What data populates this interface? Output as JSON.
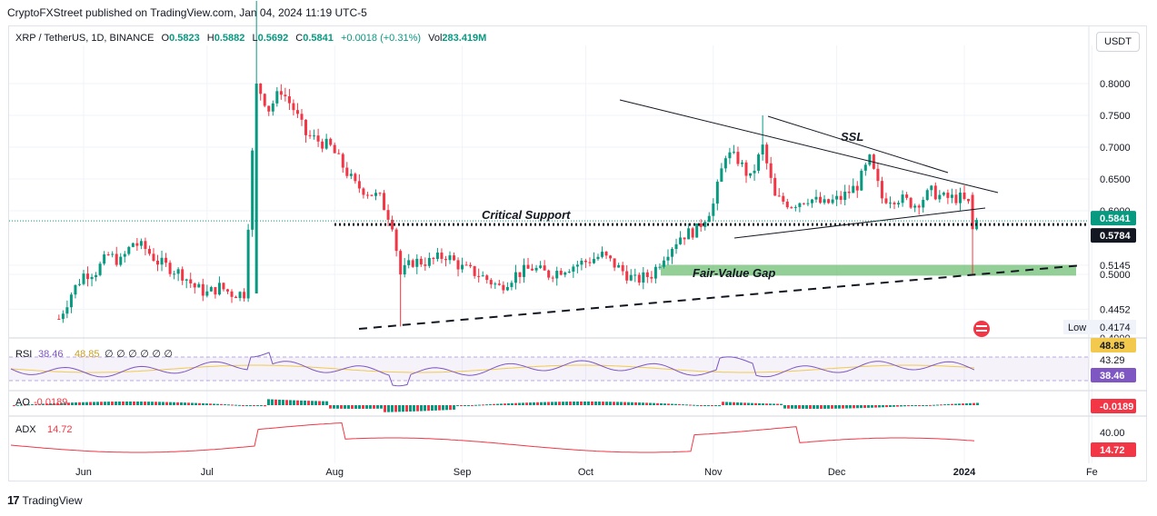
{
  "publisher": "CryptoFXStreet published on TradingView.com, Jan 04, 2024 11:19 UTC-5",
  "currency_button": "USDT",
  "footer_brand": "TradingView",
  "colors": {
    "up": "#089981",
    "down": "#f23645",
    "rsi": "#7e57c2",
    "rsi_ma": "#f2c94c",
    "adx": "#f23645",
    "fvg": "#6fbf73"
  },
  "chart_data": [
    {
      "type": "candlestick",
      "symbol": "XRP / TetherUS, 1D, BINANCE",
      "ohlc": {
        "o": "0.5823",
        "h": "0.5882",
        "l": "0.5692",
        "c": "0.5841",
        "change": "+0.0018 (+0.31%)"
      },
      "volume": "283.419M",
      "y_ticks": [
        "0.8000",
        "0.7500",
        "0.7000",
        "0.6500",
        "0.6000",
        "0.5145",
        "0.5000",
        "0.4452",
        "0.4000"
      ],
      "x_ticks": [
        "Jun",
        "Jul",
        "Aug",
        "Sep",
        "Oct",
        "Nov",
        "Dec",
        "2024",
        "Fe"
      ],
      "price_labels": {
        "last": "0.5841",
        "support": "0.5784",
        "low_label": "Low",
        "low": "0.4174"
      },
      "annotations": [
        "Critical Support",
        "SSL",
        "Fair-Value Gap"
      ],
      "close_path": [
        [
          "May 26",
          0.43
        ],
        [
          "May 29",
          0.47
        ],
        [
          "Jun 1",
          0.5
        ],
        [
          "Jun 4",
          0.505
        ],
        [
          "Jun 7",
          0.53
        ],
        [
          "Jun 10",
          0.52
        ],
        [
          "Jun 13",
          0.55
        ],
        [
          "Jun 16",
          0.54
        ],
        [
          "Jun 19",
          0.52
        ],
        [
          "Jun 22",
          0.51
        ],
        [
          "Jun 25",
          0.5
        ],
        [
          "Jun 28",
          0.48
        ],
        [
          "Jul 1",
          0.47
        ],
        [
          "Jul 4",
          0.48
        ],
        [
          "Jul 7",
          0.47
        ],
        [
          "Jul 10",
          0.47
        ],
        [
          "Jul 13",
          0.8
        ],
        [
          "Jul 16",
          0.76
        ],
        [
          "Jul 19",
          0.79
        ],
        [
          "Jul 22",
          0.76
        ],
        [
          "Jul 25",
          0.72
        ],
        [
          "Jul 28",
          0.71
        ],
        [
          "Jul 31",
          0.7
        ],
        [
          "Aug 3",
          0.67
        ],
        [
          "Aug 6",
          0.64
        ],
        [
          "Aug 9",
          0.63
        ],
        [
          "Aug 12",
          0.62
        ],
        [
          "Aug 15",
          0.58
        ],
        [
          "Aug 17",
          0.5
        ],
        [
          "Aug 20",
          0.52
        ],
        [
          "Aug 24",
          0.52
        ],
        [
          "Aug 28",
          0.53
        ],
        [
          "Sep 1",
          0.51
        ],
        [
          "Sep 5",
          0.5
        ],
        [
          "Sep 10",
          0.48
        ],
        [
          "Sep 14",
          0.5
        ],
        [
          "Sep 18",
          0.51
        ],
        [
          "Sep 22",
          0.5
        ],
        [
          "Sep 26",
          0.51
        ],
        [
          "Oct 1",
          0.52
        ],
        [
          "Oct 5",
          0.53
        ],
        [
          "Oct 9",
          0.51
        ],
        [
          "Oct 13",
          0.49
        ],
        [
          "Oct 17",
          0.5
        ],
        [
          "Oct 20",
          0.53
        ],
        [
          "Oct 24",
          0.56
        ],
        [
          "Oct 28",
          0.57
        ],
        [
          "Nov 1",
          0.61
        ],
        [
          "Nov 4",
          0.69
        ],
        [
          "Nov 7",
          0.68
        ],
        [
          "Nov 10",
          0.65
        ],
        [
          "Nov 13",
          0.7
        ],
        [
          "Nov 16",
          0.62
        ],
        [
          "Nov 20",
          0.61
        ],
        [
          "Nov 24",
          0.62
        ],
        [
          "Nov 28",
          0.61
        ],
        [
          "Dec 2",
          0.62
        ],
        [
          "Dec 6",
          0.64
        ],
        [
          "Dec 9",
          0.68
        ],
        [
          "Dec 12",
          0.62
        ],
        [
          "Dec 16",
          0.62
        ],
        [
          "Dec 20",
          0.61
        ],
        [
          "Dec 24",
          0.63
        ],
        [
          "Dec 27",
          0.62
        ],
        [
          "Dec 31",
          0.62
        ],
        [
          "Jan 2",
          0.61
        ],
        [
          "Jan 3",
          0.57
        ],
        [
          "Jan 4",
          0.5841
        ]
      ]
    },
    {
      "type": "line",
      "name": "RSI",
      "values_label": [
        "38.46",
        "48.85"
      ],
      "axis_labels": [
        "48.85",
        "43.29",
        "38.46"
      ],
      "extra": "∅ ∅ ∅ ∅ ∅ ∅"
    },
    {
      "type": "bar",
      "name": "AO",
      "value": "-0.0189",
      "axis_labels": [
        "-0.0189"
      ]
    },
    {
      "type": "line",
      "name": "ADX",
      "value": "14.72",
      "axis_labels": [
        "40.00",
        "14.72"
      ]
    }
  ]
}
